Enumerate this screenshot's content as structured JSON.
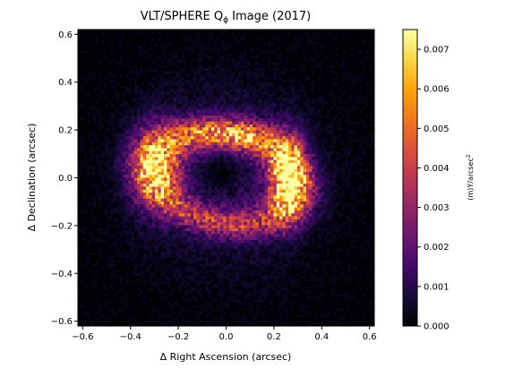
{
  "chart_data": {
    "type": "heatmap",
    "title_main": "VLT/SPHERE Q",
    "title_sub": "ϕ",
    "title_rest": " Image (2017)",
    "xlabel": "Δ Right Ascension (arcsec)",
    "ylabel": "Δ Declination (arcsec)",
    "xlim": [
      -0.62,
      0.62
    ],
    "ylim": [
      -0.62,
      0.62
    ],
    "x_ticks": [
      -0.6,
      -0.4,
      -0.2,
      0.0,
      0.2,
      0.4,
      0.6
    ],
    "x_tick_labels": [
      "−0.6",
      "−0.4",
      "−0.2",
      "0.0",
      "0.2",
      "0.4",
      "0.6"
    ],
    "y_ticks": [
      -0.6,
      -0.4,
      -0.2,
      0.0,
      0.2,
      0.4,
      0.6
    ],
    "y_tick_labels": [
      "−0.6",
      "−0.4",
      "−0.2",
      "0.0",
      "0.2",
      "0.4",
      "0.6"
    ],
    "colormap": "inferno",
    "colorbar": {
      "label_main": "(m)Y/arcsec",
      "label_sup": "2",
      "range": [
        0.0,
        0.0075
      ],
      "ticks": [
        0.0,
        0.001,
        0.002,
        0.003,
        0.004,
        0.005,
        0.006,
        0.007
      ],
      "tick_labels": [
        "0.000",
        "0.001",
        "0.002",
        "0.003",
        "0.004",
        "0.005",
        "0.006",
        "0.007"
      ]
    },
    "image_grid": {
      "nx": 100,
      "ny": 100,
      "seed": 20170
    },
    "features": {
      "ring_semi_major_arcsec": 0.3,
      "ring_semi_minor_arcsec": 0.19,
      "ring_position_angle_deg": 10,
      "peak_east_arcsec": [
        0.26,
        0.0
      ],
      "peak_east_value": 0.0068,
      "peak_west_arcsec": [
        -0.3,
        0.05
      ],
      "peak_west_value": 0.0042,
      "central_hole_radius_arcsec": 0.09
    }
  }
}
